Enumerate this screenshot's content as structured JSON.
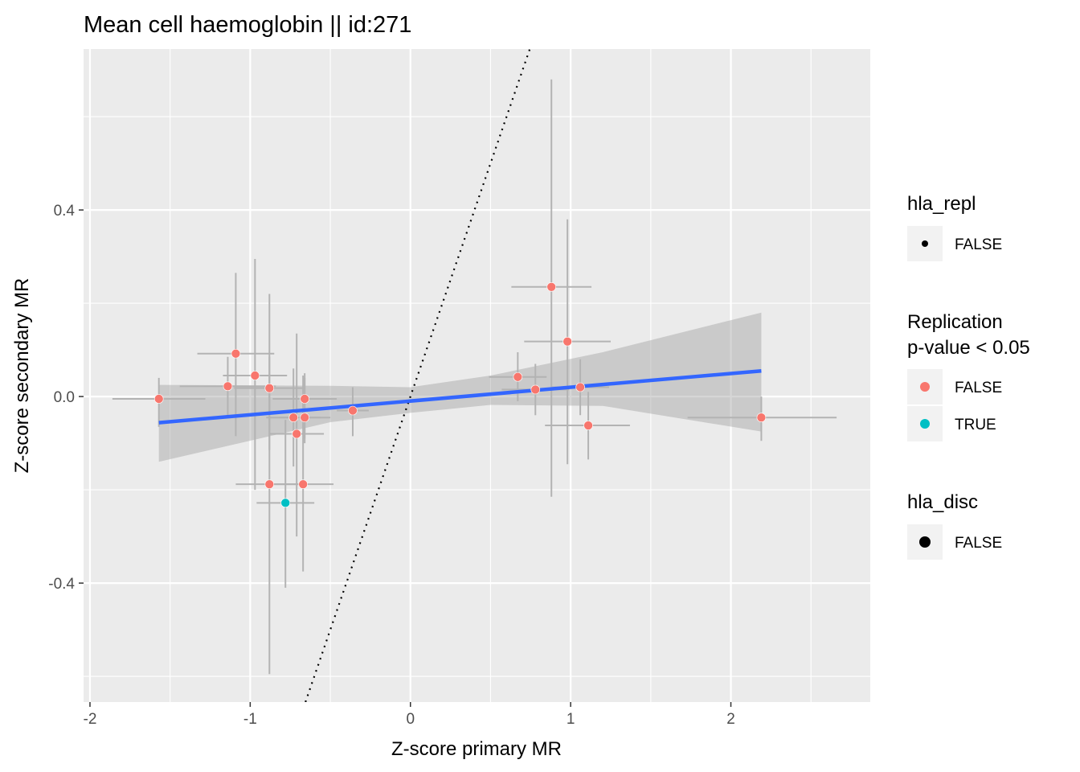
{
  "chart_data": {
    "type": "scatter",
    "title": "Mean cell haemoglobin || id:271",
    "xlabel": "Z-score primary MR",
    "ylabel": "Z-score secondary MR",
    "xlim": [
      -2.04,
      2.87
    ],
    "ylim": [
      -0.655,
      0.745
    ],
    "x_ticks": [
      -2,
      -1,
      0,
      1,
      2
    ],
    "x_tick_labels": [
      "-2",
      "-1",
      "0",
      "1",
      "2"
    ],
    "y_ticks": [
      -0.4,
      0.0,
      0.4
    ],
    "y_tick_labels": [
      "-0.4",
      "0.0",
      "0.4"
    ],
    "grid": true,
    "colors": {
      "panel": "#ebebeb",
      "grid": "#ffffff",
      "false": "#f8766d",
      "true": "#00bfc4",
      "errorbar": "#b3b3b3",
      "fit_line": "#3366ff",
      "ribbon": "#999999"
    },
    "points": [
      {
        "x": -1.57,
        "y": -0.005,
        "xlo": -1.86,
        "xhi": -1.28,
        "ylo": -0.065,
        "yhi": 0.04,
        "replication": "FALSE"
      },
      {
        "x": -1.14,
        "y": 0.022,
        "xlo": -1.44,
        "xhi": -0.84,
        "ylo": -0.04,
        "yhi": 0.085,
        "replication": "FALSE"
      },
      {
        "x": -1.09,
        "y": 0.092,
        "xlo": -1.33,
        "xhi": -0.85,
        "ylo": -0.085,
        "yhi": 0.265,
        "replication": "FALSE"
      },
      {
        "x": -0.97,
        "y": 0.045,
        "xlo": -1.17,
        "xhi": -0.77,
        "ylo": -0.2,
        "yhi": 0.295,
        "replication": "FALSE"
      },
      {
        "x": -0.88,
        "y": 0.018,
        "xlo": -1.1,
        "xhi": -0.66,
        "ylo": -0.115,
        "yhi": 0.085,
        "replication": "FALSE"
      },
      {
        "x": -0.88,
        "y": -0.188,
        "xlo": -1.09,
        "xhi": -0.67,
        "ylo": -0.595,
        "yhi": 0.22,
        "replication": "FALSE"
      },
      {
        "x": -0.73,
        "y": -0.045,
        "xlo": -0.9,
        "xhi": -0.56,
        "ylo": -0.15,
        "yhi": 0.06,
        "replication": "FALSE"
      },
      {
        "x": -0.71,
        "y": -0.08,
        "xlo": -0.88,
        "xhi": -0.54,
        "ylo": -0.3,
        "yhi": 0.135,
        "replication": "FALSE"
      },
      {
        "x": -0.67,
        "y": -0.188,
        "xlo": -0.86,
        "xhi": -0.48,
        "ylo": -0.375,
        "yhi": 0.045,
        "replication": "FALSE"
      },
      {
        "x": -0.66,
        "y": -0.005,
        "xlo": -0.86,
        "xhi": -0.46,
        "ylo": -0.09,
        "yhi": 0.05,
        "replication": "FALSE"
      },
      {
        "x": -0.66,
        "y": -0.045,
        "xlo": -0.82,
        "xhi": -0.5,
        "ylo": -0.1,
        "yhi": 0.04,
        "replication": "FALSE"
      },
      {
        "x": -0.78,
        "y": -0.228,
        "xlo": -0.96,
        "xhi": -0.6,
        "ylo": -0.41,
        "yhi": -0.05,
        "replication": "TRUE"
      },
      {
        "x": -0.36,
        "y": -0.03,
        "xlo": -0.46,
        "xhi": -0.26,
        "ylo": -0.085,
        "yhi": 0.02,
        "replication": "FALSE"
      },
      {
        "x": 0.67,
        "y": 0.042,
        "xlo": 0.49,
        "xhi": 0.85,
        "ylo": -0.01,
        "yhi": 0.095,
        "replication": "FALSE"
      },
      {
        "x": 0.78,
        "y": 0.015,
        "xlo": 0.57,
        "xhi": 0.99,
        "ylo": -0.04,
        "yhi": 0.07,
        "replication": "FALSE"
      },
      {
        "x": 0.88,
        "y": 0.235,
        "xlo": 0.63,
        "xhi": 1.13,
        "ylo": -0.215,
        "yhi": 0.68,
        "replication": "FALSE"
      },
      {
        "x": 0.98,
        "y": 0.118,
        "xlo": 0.71,
        "xhi": 1.25,
        "ylo": -0.145,
        "yhi": 0.38,
        "replication": "FALSE"
      },
      {
        "x": 1.06,
        "y": 0.02,
        "xlo": 0.88,
        "xhi": 1.24,
        "ylo": -0.04,
        "yhi": 0.08,
        "replication": "FALSE"
      },
      {
        "x": 1.11,
        "y": -0.062,
        "xlo": 0.84,
        "xhi": 1.37,
        "ylo": -0.135,
        "yhi": 0.01,
        "replication": "FALSE"
      },
      {
        "x": 2.19,
        "y": -0.045,
        "xlo": 1.73,
        "xhi": 2.66,
        "ylo": -0.095,
        "yhi": 0.0,
        "replication": "FALSE"
      }
    ],
    "fit_line": {
      "x0": -1.57,
      "y0": -0.056,
      "x1": 2.19,
      "y1": 0.055
    },
    "ribbon": [
      {
        "x": -1.57,
        "lo": -0.14,
        "hi": 0.025
      },
      {
        "x": -0.5,
        "lo": -0.055,
        "hi": 0.023
      },
      {
        "x": 0.0,
        "lo": -0.035,
        "hi": 0.02
      },
      {
        "x": 0.5,
        "lo": -0.018,
        "hi": 0.045
      },
      {
        "x": 1.2,
        "lo": -0.02,
        "hi": 0.095
      },
      {
        "x": 2.19,
        "lo": -0.075,
        "hi": 0.18
      }
    ],
    "identity_line": {
      "slope": 1,
      "intercept": 0
    },
    "legend_position": "right",
    "legends": [
      {
        "title": "hla_repl",
        "items": [
          {
            "label": "FALSE",
            "symbol": "small-dot"
          }
        ]
      },
      {
        "title_lines": [
          "Replication",
          "p-value < 0.05"
        ],
        "items": [
          {
            "label": "FALSE",
            "symbol": "false-color"
          },
          {
            "label": "TRUE",
            "symbol": "true-color"
          }
        ]
      },
      {
        "title": "hla_disc",
        "items": [
          {
            "label": "FALSE",
            "symbol": "large-dot"
          }
        ]
      }
    ]
  }
}
